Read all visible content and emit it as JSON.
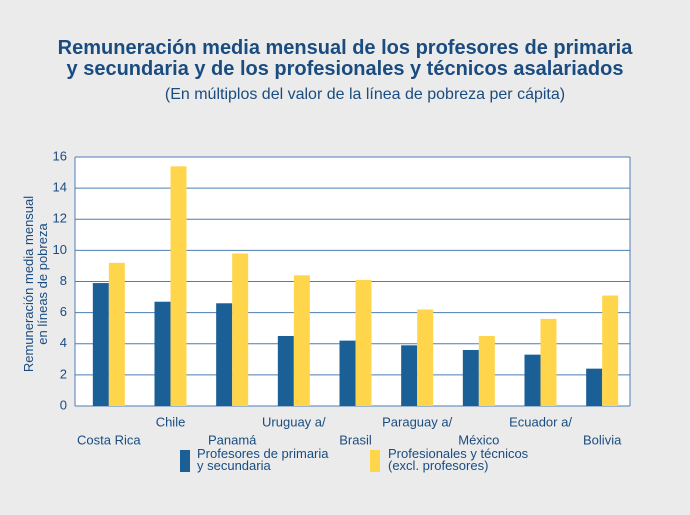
{
  "chart_data": {
    "type": "bar",
    "title": "Remuneración media mensual de los profesores de primaria\ny secundaria y de los profesionales y técnicos asalariados",
    "subtitle": "(En múltiplos del valor de la línea de pobreza per cápita)",
    "y_label": "Remuneración media mensual\nen líneas de pobreza",
    "categories": [
      "Costa Rica",
      "Chile",
      "Panamá",
      "Uruguay a/",
      "Brasil",
      "Paraguay a/",
      "México",
      "Ecuador a/",
      "Bolivia"
    ],
    "series": [
      {
        "name": "Profesores de primaria\ny secundaria",
        "color": "#1b5f97",
        "values": [
          7.9,
          6.7,
          6.6,
          4.5,
          4.2,
          3.9,
          3.6,
          3.3,
          2.4
        ]
      },
      {
        "name": "Profesionales y técnicos\n(excl. profesores)",
        "color": "#ffd54c",
        "values": [
          9.2,
          15.4,
          9.8,
          8.4,
          8.1,
          6.2,
          4.5,
          5.6,
          7.1
        ]
      }
    ],
    "ylim": [
      0,
      16
    ],
    "yticks": [
      0,
      2,
      4,
      6,
      8,
      10,
      12,
      14,
      16
    ],
    "grid": true
  }
}
